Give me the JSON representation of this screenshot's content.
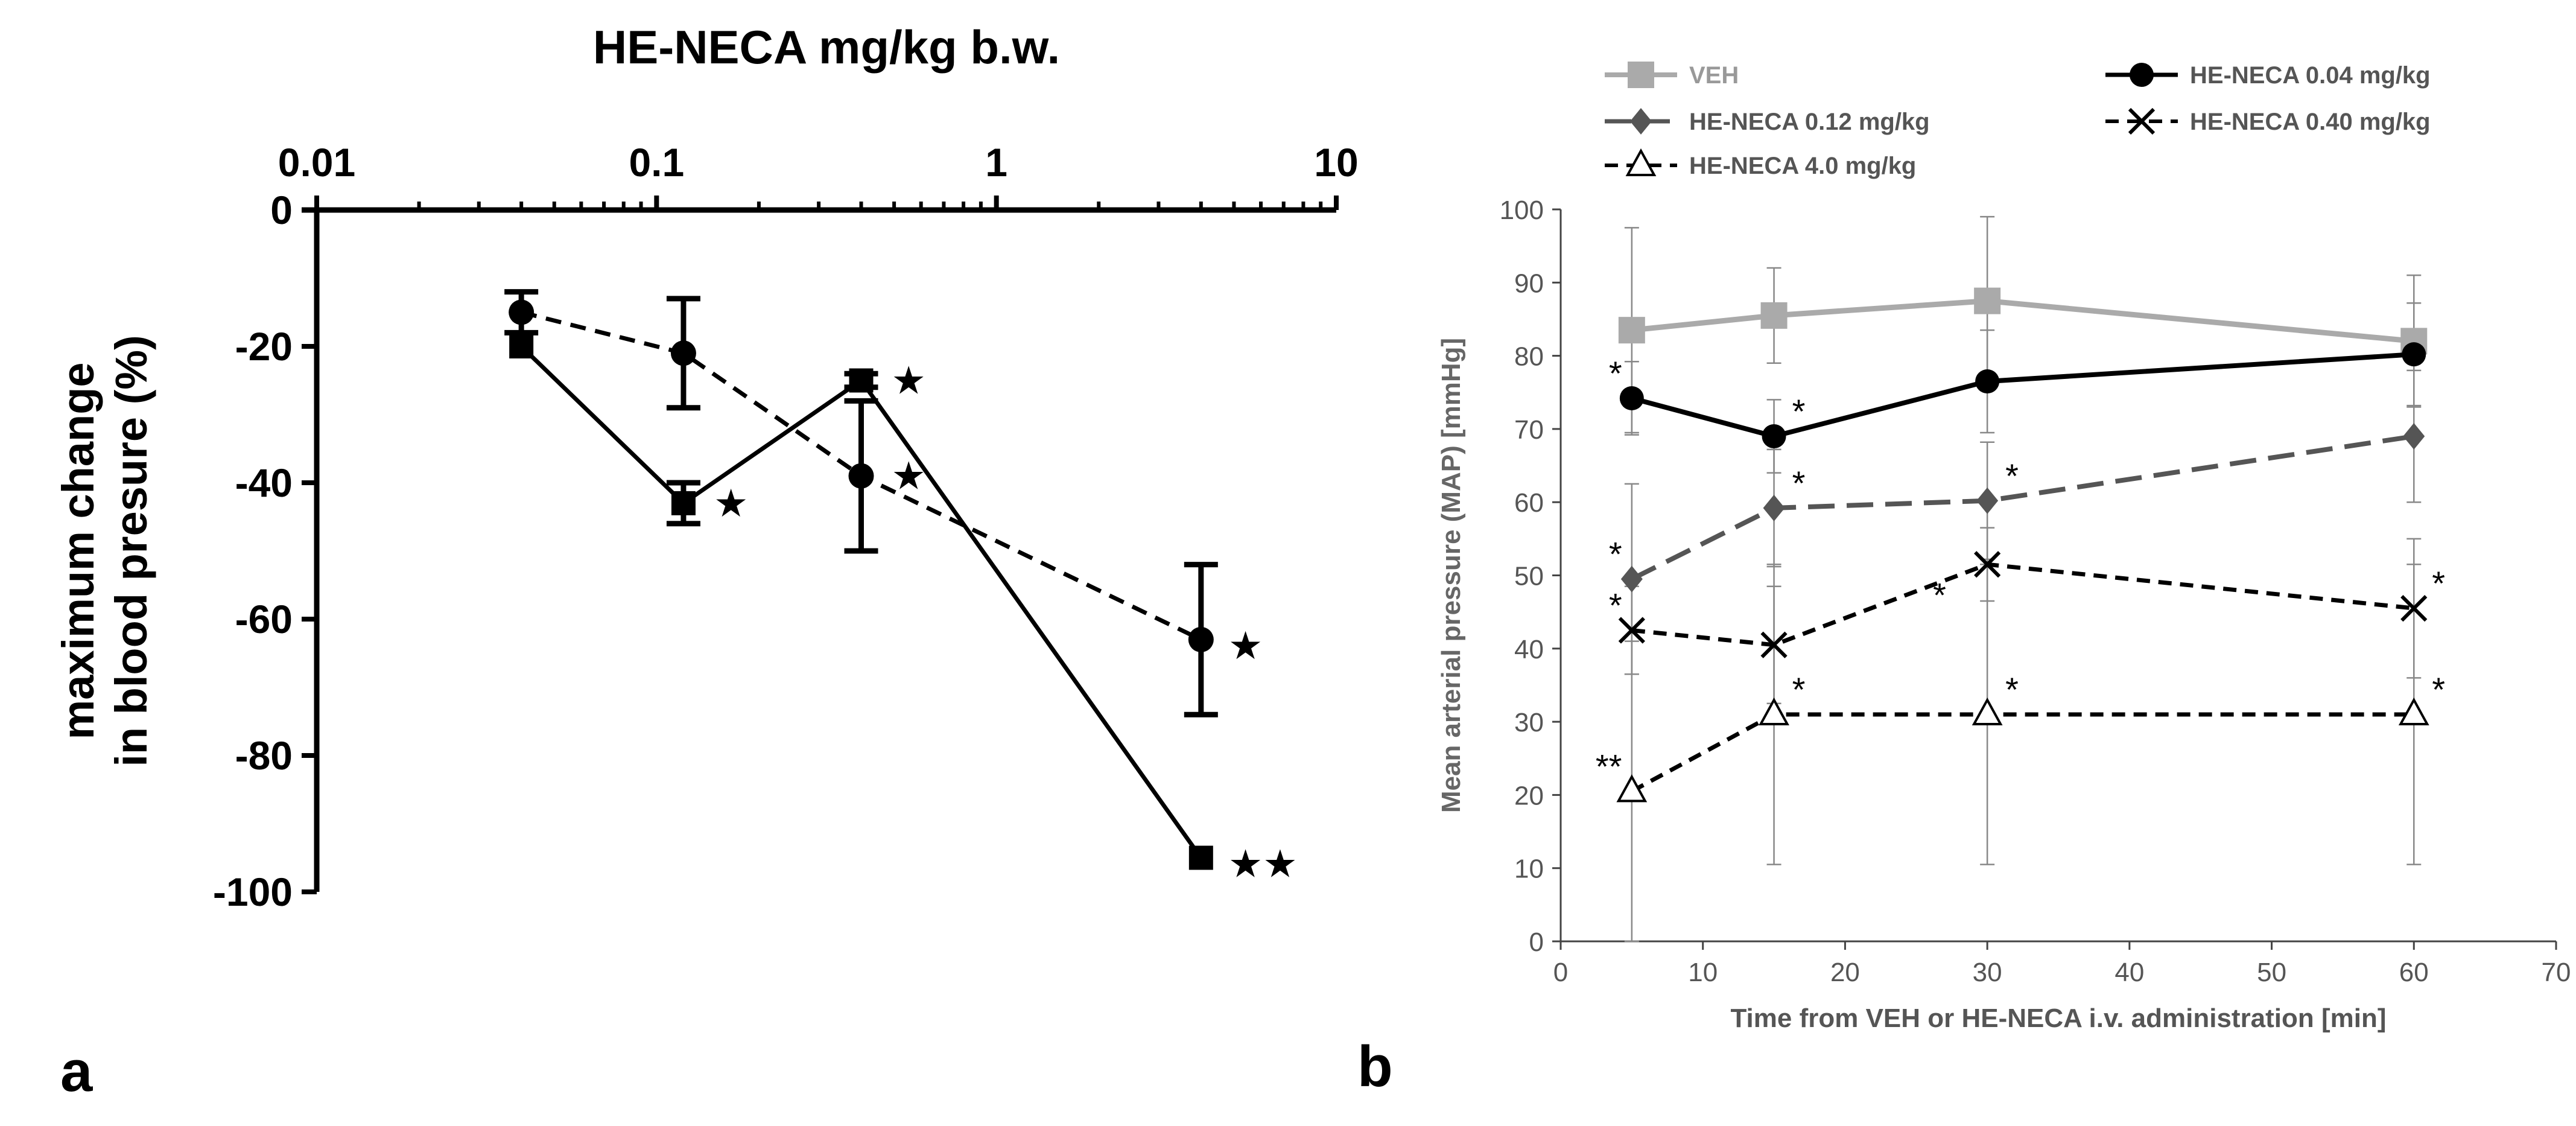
{
  "panels": {
    "a": {
      "label": "a"
    },
    "b": {
      "label": "b"
    }
  },
  "chart_data": [
    {
      "id": "panel-a",
      "type": "line",
      "title": "HE-NECA mg/kg b.w.",
      "xlabel": "HE-NECA mg/kg b.w.",
      "ylabel_lines": [
        "maximum change",
        "in blood presure (%)"
      ],
      "xscale": "log",
      "xlim": [
        0.01,
        10
      ],
      "ylim": [
        -100,
        0
      ],
      "x_ticks": [
        0.01,
        0.1,
        1,
        10
      ],
      "x_tick_labels": [
        "0.01",
        "0.1",
        "1",
        "10"
      ],
      "y_ticks": [
        0,
        -20,
        -40,
        -60,
        -80,
        -100
      ],
      "y_tick_labels": [
        "0",
        "-20",
        "-40",
        "-60",
        "-80",
        "-100"
      ],
      "x_axis_position": "top",
      "grid": false,
      "series": [
        {
          "name": "squares-solid",
          "marker": "square",
          "line": "solid",
          "x": [
            0.04,
            0.12,
            0.4,
            4.0
          ],
          "y": [
            -20,
            -43,
            -25,
            -95
          ],
          "err": [
            0,
            3,
            1,
            0
          ],
          "stars": [
            "",
            "★",
            "★",
            "★★"
          ]
        },
        {
          "name": "circles-dashed",
          "marker": "circle",
          "line": "dashed",
          "x": [
            0.04,
            0.12,
            0.4,
            4.0
          ],
          "y": [
            -15,
            -21,
            -39,
            -63
          ],
          "err": [
            3,
            8,
            11,
            11
          ],
          "stars": [
            "",
            "",
            "★",
            "★"
          ]
        }
      ]
    },
    {
      "id": "panel-b",
      "type": "line",
      "xlabel": "Time from VEH or HE-NECA i.v. administration [min]",
      "ylabel": "Mean arterial pressure (MAP) [mmHg]",
      "xlim": [
        0,
        70
      ],
      "ylim": [
        0,
        100
      ],
      "x_ticks": [
        0,
        10,
        20,
        30,
        40,
        50,
        60,
        70
      ],
      "y_ticks": [
        0,
        10,
        20,
        30,
        40,
        50,
        60,
        70,
        80,
        90,
        100
      ],
      "legend": "top",
      "grid": false,
      "x": [
        5,
        15,
        30,
        60
      ],
      "series": [
        {
          "name": "VEH",
          "color": "#aaaaaa",
          "marker": "square",
          "line": "solid",
          "values": [
            83.5,
            85.5,
            87.5,
            82
          ],
          "err": [
            14,
            6.5,
            11.5,
            9
          ],
          "stars": [
            "",
            "",
            "",
            ""
          ]
        },
        {
          "name": "HE-NECA 0.04 mg/kg",
          "color": "#000000",
          "marker": "circle",
          "line": "solid",
          "values": [
            74.2,
            69,
            76.5,
            80.2
          ],
          "err": [
            5,
            5,
            7,
            7
          ],
          "stars": [
            "*",
            "*",
            "",
            ""
          ]
        },
        {
          "name": "HE-NECA 0.12 mg/kg",
          "color": "#555555",
          "marker": "diamond",
          "line": "longdash",
          "values": [
            49.5,
            59.2,
            60.2,
            69
          ],
          "err": [
            13,
            8,
            8,
            9
          ],
          "stars": [
            "*",
            "*",
            "*",
            ""
          ]
        },
        {
          "name": "HE-NECA 0.40 mg/kg",
          "color": "#000000",
          "marker": "x",
          "line": "dashed",
          "values": [
            42.5,
            40.5,
            51.5,
            45.5
          ],
          "err": [
            6,
            8,
            5,
            9.5
          ],
          "stars": [
            "*",
            "",
            "*",
            "*"
          ]
        },
        {
          "name": "HE-NECA 4.0 mg/kg",
          "color": "#000000",
          "marker": "triangle-open",
          "line": "dashed",
          "values": [
            20.5,
            31,
            31,
            31
          ],
          "err": [
            20.5,
            20.5,
            20.5,
            20.5
          ],
          "stars": [
            "**",
            "*",
            "*",
            "*"
          ]
        }
      ]
    }
  ]
}
